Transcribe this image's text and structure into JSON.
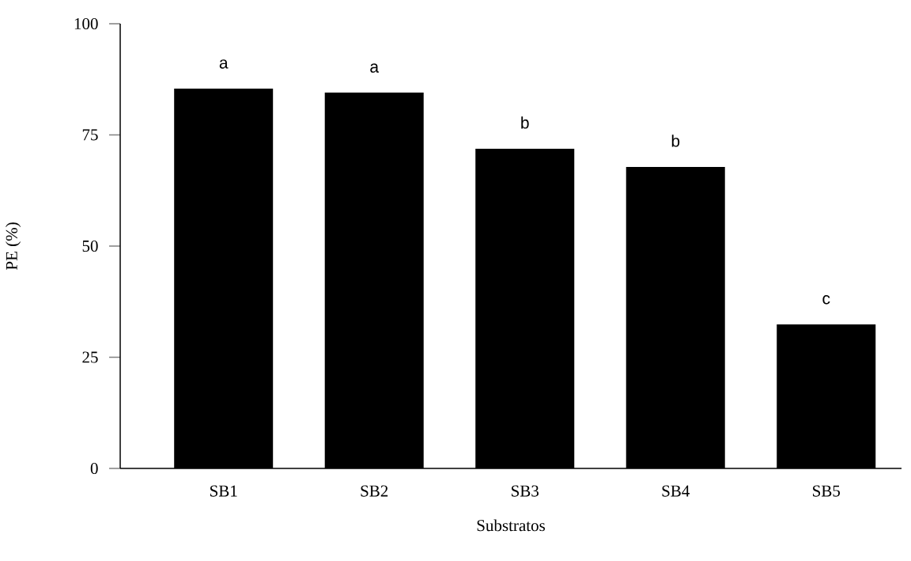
{
  "chart_data": {
    "type": "bar",
    "xlabel": "Substratos",
    "ylabel": "PE (%)",
    "categories": [
      "SB1",
      "SB2",
      "SB3",
      "SB4",
      "SB5"
    ],
    "values": [
      85.4,
      84.5,
      71.9,
      67.8,
      32.4
    ],
    "color": "#000000",
    "ylim": [
      0,
      100
    ],
    "yticks": [
      0,
      25,
      50,
      75,
      100
    ],
    "grid": false,
    "annotations": [
      "a",
      "a",
      "b",
      "b",
      "c"
    ]
  }
}
